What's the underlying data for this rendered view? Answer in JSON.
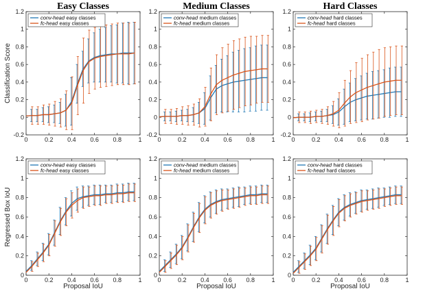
{
  "chart_data": [
    {
      "type": "line",
      "panel": "Easy Classes / classification",
      "title": "Easy Classes",
      "xlabel": "",
      "ylabel": "Classification Score",
      "xlim": [
        0,
        1
      ],
      "ylim": [
        -0.2,
        1.2
      ],
      "xticks": [
        "0",
        "0.2",
        "0.4",
        "0.6",
        "0.8",
        "1"
      ],
      "yticks": [
        "-0.2",
        "0",
        "0.2",
        "0.4",
        "0.6",
        "0.8",
        "1",
        "1.2"
      ],
      "legend_location": "top-left",
      "x": [
        0.05,
        0.1,
        0.15,
        0.2,
        0.25,
        0.3,
        0.35,
        0.4,
        0.45,
        0.5,
        0.55,
        0.6,
        0.65,
        0.7,
        0.75,
        0.8,
        0.85,
        0.9,
        0.95
      ],
      "series": [
        {
          "name_prefix": "conv-head",
          "name_suffix": "easy classes",
          "color": "#1f77b4",
          "values": [
            0.02,
            0.02,
            0.03,
            0.03,
            0.04,
            0.05,
            0.08,
            0.18,
            0.38,
            0.55,
            0.64,
            0.68,
            0.7,
            0.71,
            0.72,
            0.72,
            0.73,
            0.73,
            0.73
          ],
          "err": [
            0.07,
            0.07,
            0.08,
            0.09,
            0.1,
            0.12,
            0.18,
            0.27,
            0.22,
            0.2,
            0.25,
            0.28,
            0.3,
            0.31,
            0.32,
            0.33,
            0.34,
            0.35,
            0.35
          ]
        },
        {
          "name_prefix": "fc-head",
          "name_suffix": "easy classes",
          "color": "#d95319",
          "values": [
            0.02,
            0.02,
            0.03,
            0.03,
            0.04,
            0.05,
            0.08,
            0.16,
            0.36,
            0.53,
            0.63,
            0.67,
            0.69,
            0.7,
            0.71,
            0.72,
            0.72,
            0.72,
            0.73
          ],
          "err": [
            0.1,
            0.1,
            0.11,
            0.12,
            0.14,
            0.16,
            0.22,
            0.3,
            0.33,
            0.37,
            0.36,
            0.35,
            0.35,
            0.35,
            0.35,
            0.35,
            0.35,
            0.35,
            0.35
          ]
        }
      ]
    },
    {
      "type": "line",
      "panel": "Medium Classes / classification",
      "title": "Medium Classes",
      "xlabel": "",
      "ylabel": "",
      "xlim": [
        0,
        1
      ],
      "ylim": [
        -0.2,
        1.2
      ],
      "xticks": [
        "0",
        "0.2",
        "0.4",
        "0.6",
        "0.8",
        "1"
      ],
      "yticks": [
        "-0.2",
        "0",
        "0.2",
        "0.4",
        "0.6",
        "0.8",
        "1",
        "1.2"
      ],
      "legend_location": "top-left",
      "x": [
        0.05,
        0.1,
        0.15,
        0.2,
        0.25,
        0.3,
        0.35,
        0.4,
        0.45,
        0.5,
        0.55,
        0.6,
        0.65,
        0.7,
        0.75,
        0.8,
        0.85,
        0.9,
        0.95
      ],
      "series": [
        {
          "name_prefix": "conv-head",
          "name_suffix": "medium classes",
          "color": "#1f77b4",
          "values": [
            0.01,
            0.01,
            0.01,
            0.02,
            0.02,
            0.03,
            0.05,
            0.1,
            0.22,
            0.32,
            0.36,
            0.38,
            0.4,
            0.41,
            0.42,
            0.43,
            0.44,
            0.45,
            0.45
          ],
          "err": [
            0.05,
            0.05,
            0.06,
            0.06,
            0.07,
            0.08,
            0.12,
            0.18,
            0.25,
            0.27,
            0.3,
            0.32,
            0.34,
            0.35,
            0.36,
            0.36,
            0.37,
            0.37,
            0.37
          ]
        },
        {
          "name_prefix": "fc-head",
          "name_suffix": "medium classes",
          "color": "#d95319",
          "values": [
            0.01,
            0.01,
            0.01,
            0.02,
            0.02,
            0.03,
            0.05,
            0.12,
            0.26,
            0.37,
            0.42,
            0.45,
            0.48,
            0.5,
            0.52,
            0.53,
            0.54,
            0.55,
            0.55
          ],
          "err": [
            0.08,
            0.08,
            0.09,
            0.1,
            0.11,
            0.12,
            0.16,
            0.22,
            0.3,
            0.34,
            0.37,
            0.38,
            0.39,
            0.39,
            0.39,
            0.39,
            0.38,
            0.38,
            0.38
          ]
        }
      ]
    },
    {
      "type": "line",
      "panel": "Hard Classes / classification",
      "title": "Hard Classes",
      "xlabel": "",
      "ylabel": "",
      "xlim": [
        0,
        1
      ],
      "ylim": [
        -0.2,
        1.2
      ],
      "xticks": [
        "0",
        "0.2",
        "0.4",
        "0.6",
        "0.8",
        "1"
      ],
      "yticks": [
        "-0.2",
        "0",
        "0.2",
        "0.4",
        "0.6",
        "0.8",
        "1",
        "1.2"
      ],
      "legend_location": "top-left",
      "x": [
        0.05,
        0.1,
        0.15,
        0.2,
        0.25,
        0.3,
        0.35,
        0.4,
        0.45,
        0.5,
        0.55,
        0.6,
        0.65,
        0.7,
        0.75,
        0.8,
        0.85,
        0.9,
        0.95
      ],
      "series": [
        {
          "name_prefix": "conv-head",
          "name_suffix": "hard classes",
          "color": "#1f77b4",
          "values": [
            0.0,
            0.0,
            0.0,
            0.01,
            0.01,
            0.02,
            0.03,
            0.06,
            0.12,
            0.17,
            0.2,
            0.22,
            0.24,
            0.25,
            0.26,
            0.27,
            0.28,
            0.29,
            0.29
          ],
          "err": [
            0.04,
            0.04,
            0.05,
            0.05,
            0.06,
            0.07,
            0.1,
            0.15,
            0.2,
            0.22,
            0.24,
            0.25,
            0.26,
            0.27,
            0.27,
            0.27,
            0.28,
            0.28,
            0.28
          ]
        },
        {
          "name_prefix": "fc-head",
          "name_suffix": "hard classes",
          "color": "#d95319",
          "values": [
            0.0,
            0.0,
            0.0,
            0.01,
            0.01,
            0.02,
            0.04,
            0.08,
            0.16,
            0.23,
            0.28,
            0.31,
            0.34,
            0.36,
            0.38,
            0.4,
            0.41,
            0.42,
            0.42
          ],
          "err": [
            0.06,
            0.06,
            0.07,
            0.07,
            0.08,
            0.1,
            0.14,
            0.2,
            0.26,
            0.3,
            0.34,
            0.36,
            0.37,
            0.38,
            0.39,
            0.39,
            0.39,
            0.39,
            0.39
          ]
        }
      ]
    },
    {
      "type": "line",
      "panel": "Easy Classes / regression",
      "title": "",
      "xlabel": "Proposal IoU",
      "ylabel": "Regressed Box IoU",
      "xlim": [
        0,
        1
      ],
      "ylim": [
        0,
        1.2
      ],
      "xticks": [
        "0",
        "0.2",
        "0.4",
        "0.6",
        "0.8",
        "1"
      ],
      "yticks": [
        "0",
        "0.2",
        "0.4",
        "0.6",
        "0.8",
        "1",
        "1.2"
      ],
      "legend_location": "top-left",
      "x": [
        0.05,
        0.1,
        0.15,
        0.2,
        0.25,
        0.3,
        0.35,
        0.4,
        0.45,
        0.5,
        0.55,
        0.6,
        0.65,
        0.7,
        0.75,
        0.8,
        0.85,
        0.9,
        0.95
      ],
      "series": [
        {
          "name_prefix": "conv-head",
          "name_suffix": "easy classes",
          "color": "#1f77b4",
          "values": [
            0.1,
            0.17,
            0.24,
            0.32,
            0.44,
            0.56,
            0.66,
            0.74,
            0.79,
            0.81,
            0.82,
            0.83,
            0.83,
            0.84,
            0.84,
            0.85,
            0.85,
            0.86,
            0.86
          ],
          "err": [
            0.05,
            0.07,
            0.09,
            0.11,
            0.13,
            0.14,
            0.14,
            0.13,
            0.12,
            0.11,
            0.1,
            0.1,
            0.1,
            0.09,
            0.09,
            0.09,
            0.09,
            0.09,
            0.09
          ]
        },
        {
          "name_prefix": "fc-head",
          "name_suffix": "easy classes",
          "color": "#d95319",
          "values": [
            0.09,
            0.16,
            0.23,
            0.31,
            0.43,
            0.55,
            0.65,
            0.72,
            0.77,
            0.8,
            0.81,
            0.82,
            0.82,
            0.83,
            0.83,
            0.84,
            0.84,
            0.85,
            0.85
          ],
          "err": [
            0.05,
            0.07,
            0.09,
            0.11,
            0.13,
            0.14,
            0.14,
            0.13,
            0.12,
            0.11,
            0.1,
            0.1,
            0.1,
            0.09,
            0.09,
            0.09,
            0.09,
            0.09,
            0.09
          ]
        }
      ]
    },
    {
      "type": "line",
      "panel": "Medium Classes / regression",
      "title": "",
      "xlabel": "Proposal IoU",
      "ylabel": "",
      "xlim": [
        0,
        1
      ],
      "ylim": [
        0,
        1.2
      ],
      "xticks": [
        "0",
        "0.2",
        "0.4",
        "0.6",
        "0.8",
        "1"
      ],
      "yticks": [
        "0",
        "0.2",
        "0.4",
        "0.6",
        "0.8",
        "1",
        "1.2"
      ],
      "legend_location": "top-left",
      "x": [
        0.05,
        0.1,
        0.15,
        0.2,
        0.25,
        0.3,
        0.35,
        0.4,
        0.45,
        0.5,
        0.55,
        0.6,
        0.65,
        0.7,
        0.75,
        0.8,
        0.85,
        0.9,
        0.95
      ],
      "series": [
        {
          "name_prefix": "conv-head",
          "name_suffix": "medium classes",
          "color": "#1f77b4",
          "values": [
            0.1,
            0.16,
            0.22,
            0.29,
            0.39,
            0.5,
            0.6,
            0.68,
            0.73,
            0.76,
            0.78,
            0.79,
            0.8,
            0.81,
            0.82,
            0.83,
            0.83,
            0.84,
            0.84
          ],
          "err": [
            0.06,
            0.08,
            0.1,
            0.12,
            0.14,
            0.15,
            0.15,
            0.14,
            0.13,
            0.12,
            0.11,
            0.1,
            0.1,
            0.1,
            0.09,
            0.09,
            0.09,
            0.09,
            0.09
          ]
        },
        {
          "name_prefix": "fc-head",
          "name_suffix": "medium classes",
          "color": "#d95319",
          "values": [
            0.09,
            0.15,
            0.21,
            0.28,
            0.38,
            0.49,
            0.59,
            0.67,
            0.72,
            0.75,
            0.77,
            0.78,
            0.79,
            0.8,
            0.81,
            0.82,
            0.82,
            0.83,
            0.83
          ],
          "err": [
            0.06,
            0.08,
            0.1,
            0.12,
            0.14,
            0.15,
            0.15,
            0.14,
            0.13,
            0.12,
            0.11,
            0.1,
            0.1,
            0.1,
            0.09,
            0.09,
            0.09,
            0.09,
            0.09
          ]
        }
      ]
    },
    {
      "type": "line",
      "panel": "Hard Classes / regression",
      "title": "",
      "xlabel": "Proposal IoU",
      "ylabel": "",
      "xlim": [
        0,
        1
      ],
      "ylim": [
        0,
        1.2
      ],
      "xticks": [
        "0",
        "0.2",
        "0.4",
        "0.6",
        "0.8",
        "1"
      ],
      "yticks": [
        "0",
        "0.2",
        "0.4",
        "0.6",
        "0.8",
        "1",
        "1.2"
      ],
      "legend_location": "top-left",
      "x": [
        0.05,
        0.1,
        0.15,
        0.2,
        0.25,
        0.3,
        0.35,
        0.4,
        0.45,
        0.5,
        0.55,
        0.6,
        0.65,
        0.7,
        0.75,
        0.8,
        0.85,
        0.9,
        0.95
      ],
      "series": [
        {
          "name_prefix": "conv-head",
          "name_suffix": "hard classes",
          "color": "#1f77b4",
          "values": [
            0.09,
            0.15,
            0.21,
            0.28,
            0.38,
            0.48,
            0.57,
            0.65,
            0.7,
            0.73,
            0.75,
            0.77,
            0.78,
            0.79,
            0.8,
            0.81,
            0.82,
            0.83,
            0.83
          ],
          "err": [
            0.06,
            0.08,
            0.1,
            0.12,
            0.14,
            0.15,
            0.15,
            0.14,
            0.13,
            0.12,
            0.11,
            0.11,
            0.1,
            0.1,
            0.1,
            0.09,
            0.09,
            0.09,
            0.09
          ]
        },
        {
          "name_prefix": "fc-head",
          "name_suffix": "hard classes",
          "color": "#d95319",
          "values": [
            0.08,
            0.14,
            0.2,
            0.27,
            0.37,
            0.47,
            0.56,
            0.64,
            0.69,
            0.72,
            0.74,
            0.76,
            0.77,
            0.78,
            0.79,
            0.8,
            0.81,
            0.82,
            0.82
          ],
          "err": [
            0.06,
            0.08,
            0.1,
            0.12,
            0.14,
            0.15,
            0.15,
            0.14,
            0.13,
            0.12,
            0.11,
            0.11,
            0.1,
            0.1,
            0.1,
            0.09,
            0.09,
            0.09,
            0.09
          ]
        }
      ]
    }
  ]
}
